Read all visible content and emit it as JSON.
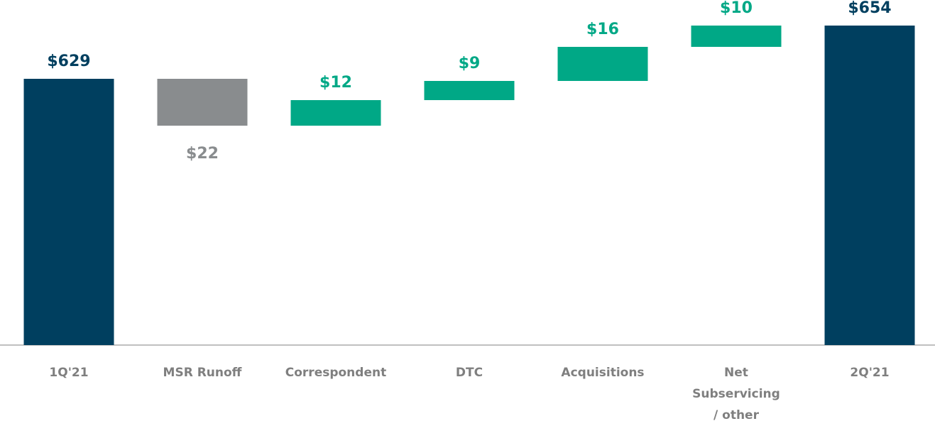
{
  "chart_data": {
    "type": "waterfall",
    "categories": [
      "1Q'21",
      "MSR Runoff",
      "Correspondent",
      "DTC",
      "Acquisitions",
      "Net Subservicing / other",
      "2Q'21"
    ],
    "values": [
      629,
      -22,
      12,
      9,
      16,
      10,
      654
    ],
    "value_labels": [
      "$629",
      "$22",
      "$12",
      "$9",
      "$16",
      "$10",
      "$654"
    ],
    "measure": [
      "total",
      "relative",
      "relative",
      "relative",
      "relative",
      "relative",
      "total"
    ],
    "colors": {
      "total": "#003f5f",
      "increase": "#00a886",
      "decrease": "#898c8e"
    },
    "ylim": [
      504,
      666
    ]
  }
}
